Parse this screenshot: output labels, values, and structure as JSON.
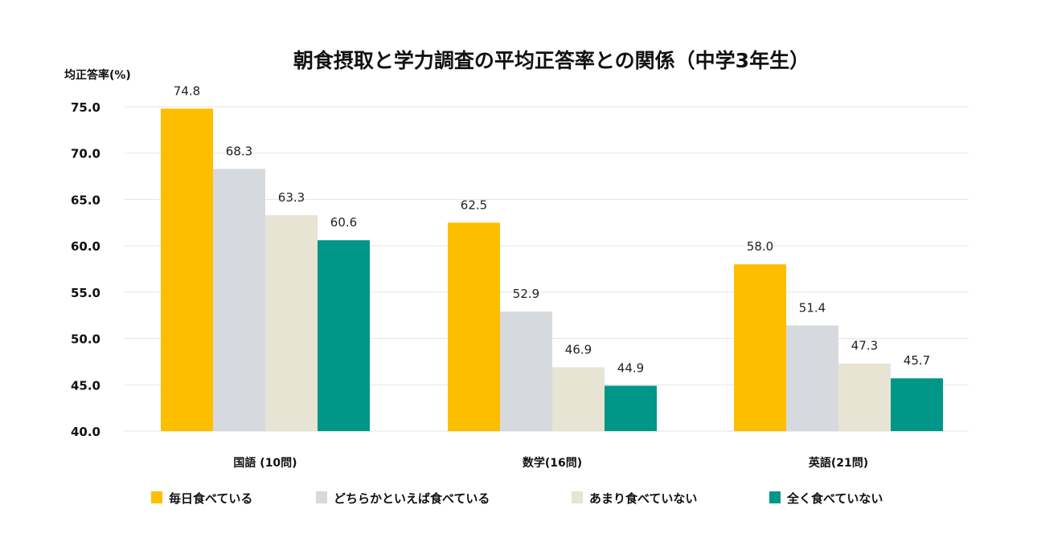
{
  "chart_data": {
    "type": "bar",
    "title": "朝食摂取と学力調査の平均正答率との関係（中学3年生）",
    "ylabel": "均正答率(%)",
    "xlabel": "",
    "ylim": [
      40,
      75
    ],
    "yticks": [
      "40.0",
      "45.0",
      "50.0",
      "55.0",
      "60.0",
      "65.0",
      "70.0",
      "75.0"
    ],
    "grid": true,
    "legend_position": "bottom",
    "categories": [
      "国語 (10問)",
      "数学(16問)",
      "英語(21問)"
    ],
    "series": [
      {
        "name": "毎日食べている",
        "color": "#FDBE00",
        "values": [
          74.8,
          62.5,
          58.0
        ],
        "labels": [
          "74.8",
          "62.5",
          "58.0"
        ]
      },
      {
        "name": "どちらかといえば食べている",
        "color": "#D6D9DD",
        "values": [
          68.3,
          52.9,
          51.4
        ],
        "labels": [
          "68.3",
          "52.9",
          "51.4"
        ]
      },
      {
        "name": "あまり食べていない",
        "color": "#E7E4D3",
        "values": [
          63.3,
          46.9,
          47.3
        ],
        "labels": [
          "63.3",
          "46.9",
          "47.3"
        ]
      },
      {
        "name": "全く食べていない",
        "color": "#009688",
        "values": [
          60.6,
          44.9,
          45.7
        ],
        "labels": [
          "60.6",
          "44.9",
          "45.7"
        ]
      }
    ]
  }
}
